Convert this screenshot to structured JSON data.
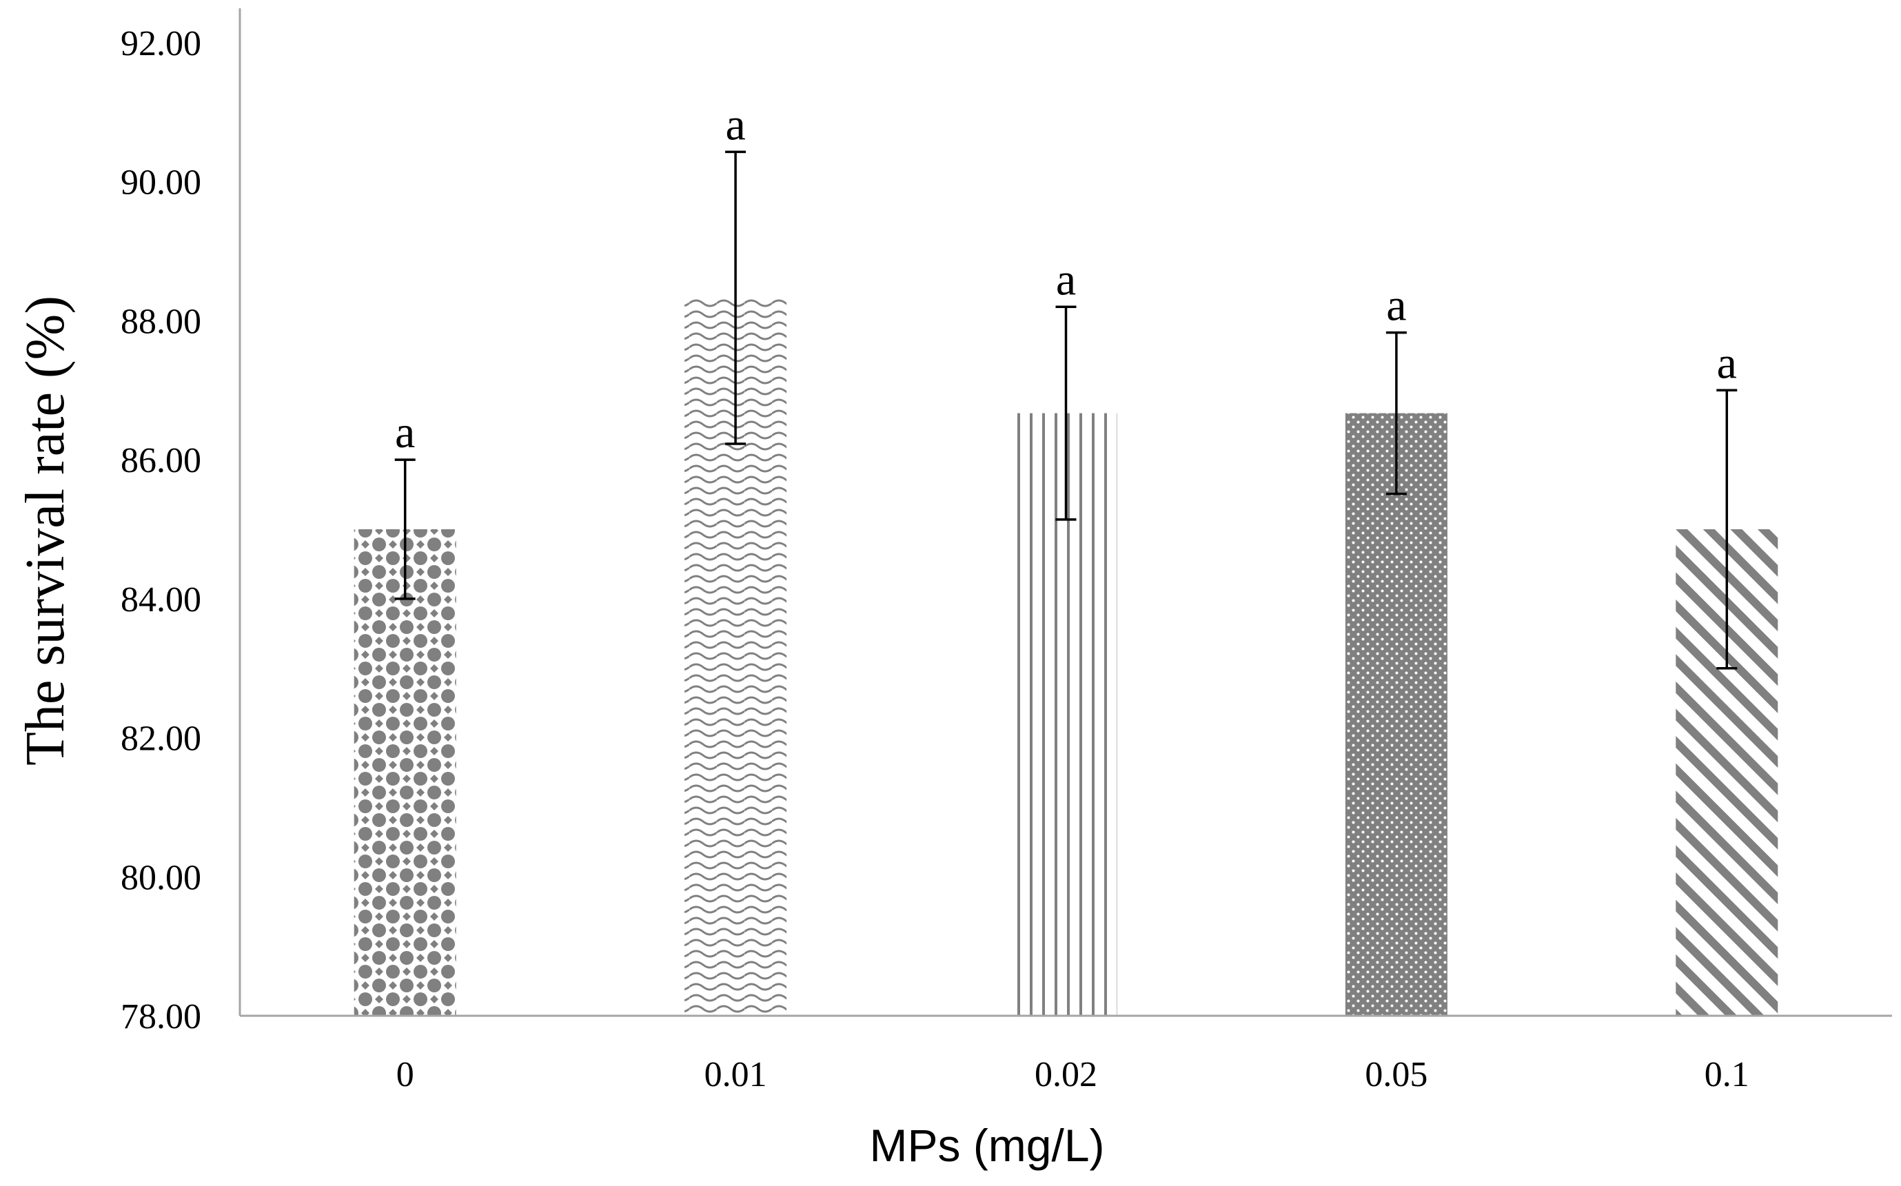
{
  "chart_data": {
    "type": "bar",
    "categories": [
      "0",
      "0.01",
      "0.02",
      "0.05",
      "0.1"
    ],
    "values": [
      85.0,
      88.33,
      86.67,
      86.67,
      85.0
    ],
    "error_upper": [
      86.0,
      90.43,
      88.2,
      87.83,
      87.0
    ],
    "error_lower": [
      84.0,
      86.23,
      85.14,
      85.51,
      83.0
    ],
    "significance_labels": [
      "a",
      "a",
      "a",
      "a",
      "a"
    ],
    "patterns": [
      "diamond-dots",
      "wave",
      "vertical-lines",
      "dense-dots",
      "diagonal-stripes"
    ],
    "ylabel": "The survival rate (%)",
    "xlabel": "MPs (mg/L)",
    "ylim": [
      78,
      92
    ],
    "y_ticks": [
      "92.00",
      "90.00",
      "88.00",
      "86.00",
      "84.00",
      "82.00",
      "80.00",
      "78.00"
    ],
    "y_tick_values": [
      92,
      90,
      88,
      86,
      84,
      82,
      80,
      78
    ],
    "grid": false,
    "legend": "none",
    "colors": {
      "bar_fill": "#808080",
      "axis": "#a6a6a6",
      "error_bar": "#000000"
    }
  }
}
